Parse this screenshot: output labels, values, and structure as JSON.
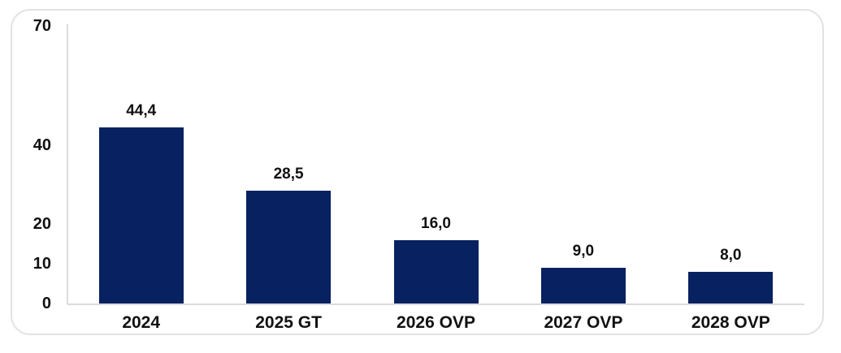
{
  "chart_data": {
    "type": "bar",
    "categories": [
      "2024",
      "2025 GT",
      "2026 OVP",
      "2027 OVP",
      "2028 OVP"
    ],
    "values": [
      44.4,
      28.5,
      16.0,
      9.0,
      8.0
    ],
    "value_labels": [
      "44,4",
      "28,5",
      "16,0",
      "9,0",
      "8,0"
    ],
    "title": "",
    "xlabel": "",
    "ylabel": "",
    "ylim": [
      0,
      70
    ],
    "yticks": [
      0,
      10,
      20,
      40,
      70
    ],
    "ytick_labels": [
      "0",
      "10",
      "20",
      "40",
      "70"
    ],
    "grid": false,
    "legend": false,
    "decimal_separator": ",",
    "bar_color": "#082160",
    "text_color": "#111111",
    "axis_line_color": "#dcdcdc",
    "frame_border_color": "#e3e3e3",
    "background_color": "#ffffff"
  }
}
